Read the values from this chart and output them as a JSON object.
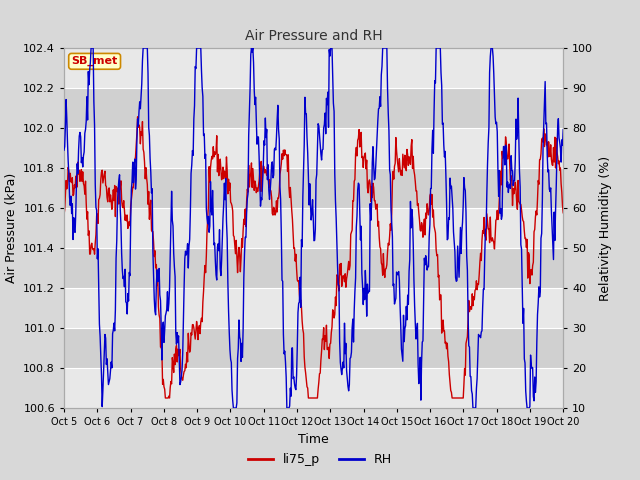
{
  "title": "Air Pressure and RH",
  "xlabel": "Time",
  "ylabel_left": "Air Pressure (kPa)",
  "ylabel_right": "Relativity Humidity (%)",
  "annotation": "SB_met",
  "ylim_left": [
    100.6,
    102.4
  ],
  "ylim_right": [
    10,
    100
  ],
  "yticks_left": [
    100.6,
    100.8,
    101.0,
    101.2,
    101.4,
    101.6,
    101.8,
    102.0,
    102.2,
    102.4
  ],
  "yticks_right": [
    10,
    20,
    30,
    40,
    50,
    60,
    70,
    80,
    90,
    100
  ],
  "xtick_labels": [
    "Oct 5",
    "Oct 6",
    "Oct 7",
    "Oct 8",
    "Oct 9",
    "Oct 10",
    "Oct 11",
    "Oct 12",
    "Oct 13",
    "Oct 14",
    "Oct 15",
    "Oct 16",
    "Oct 17",
    "Oct 18",
    "Oct 19",
    "Oct 20"
  ],
  "color_pressure": "#cc0000",
  "color_rh": "#0000cc",
  "legend_label_pressure": "li75_p",
  "legend_label_rh": "RH",
  "bg_color": "#d8d8d8",
  "band_light": "#e8e8e8",
  "band_dark": "#d0d0d0",
  "grid_color": "#c0c0c0",
  "annotation_bg": "#ffffcc",
  "annotation_border": "#cc8800",
  "title_color": "#333333"
}
